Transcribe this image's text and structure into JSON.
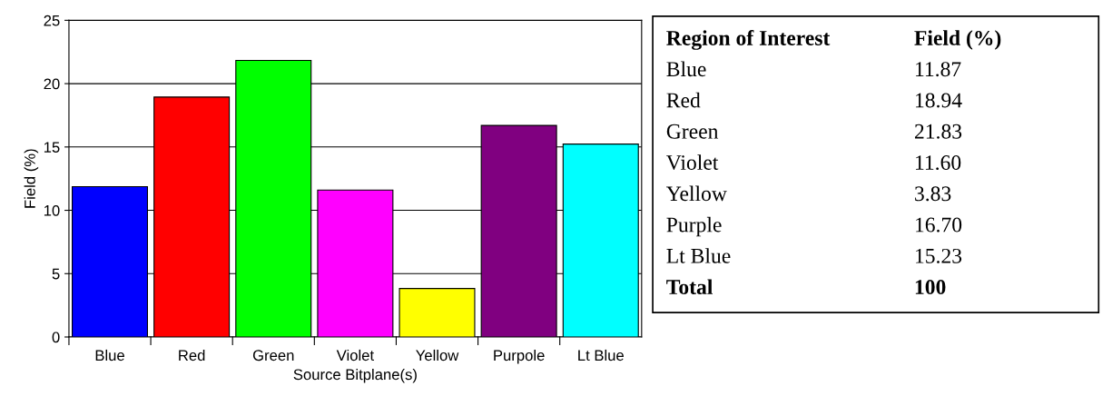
{
  "chart_data": {
    "type": "bar",
    "xlabel": "Source Bitplane(s)",
    "ylabel": "Field (%)",
    "categories": [
      "Blue",
      "Red",
      "Green",
      "Violet",
      "Yellow",
      "Purpole",
      "Lt Blue"
    ],
    "values": [
      11.87,
      18.94,
      21.83,
      11.6,
      3.83,
      16.7,
      15.23
    ],
    "colors": [
      "#0000ff",
      "#ff0000",
      "#00ff00",
      "#ff00ff",
      "#ffff00",
      "#800080",
      "#00ffff"
    ],
    "ylim": [
      0,
      25
    ],
    "yticks": [
      0,
      5,
      10,
      15,
      20,
      25
    ],
    "grid": "y",
    "annotations": [
      "Region of Interest",
      "Field (%)",
      "Blue",
      "11.87",
      "Red",
      "18.94",
      "Green",
      "21.83",
      "Violet",
      "11.60",
      "Yellow",
      "3.83",
      "Purple",
      "16.70",
      "Lt Blue",
      "15.23",
      "Total",
      "100"
    ]
  }
}
